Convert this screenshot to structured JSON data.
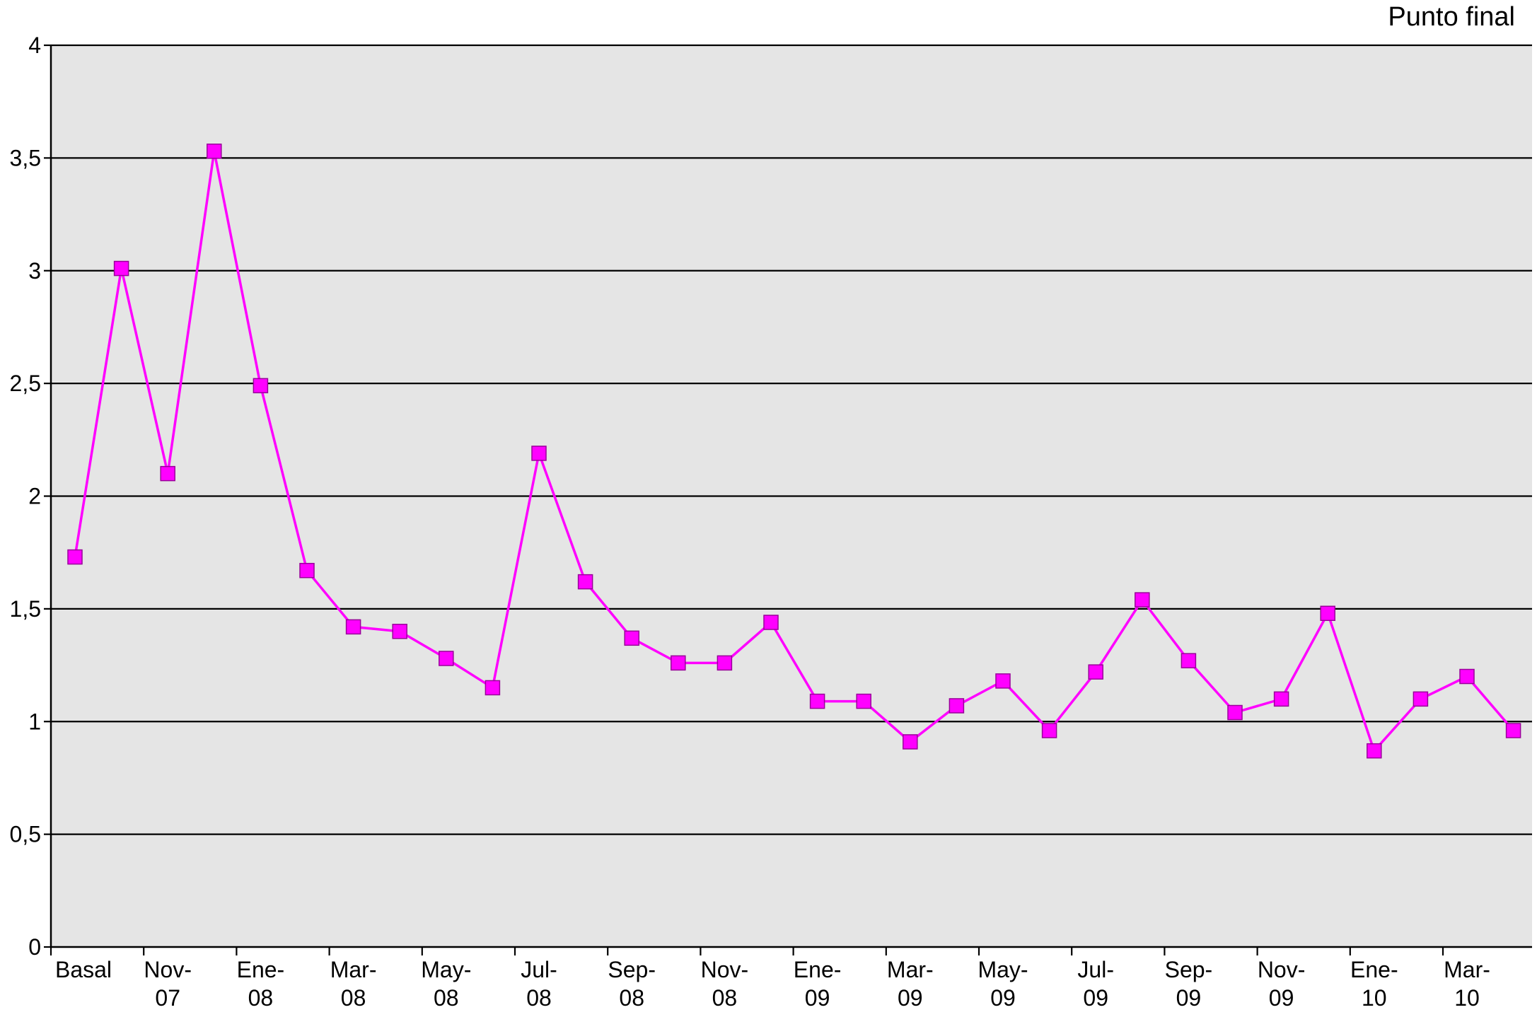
{
  "chart_data": {
    "type": "line",
    "title": "",
    "xlabel": "",
    "ylabel": "",
    "ylim": [
      0,
      4
    ],
    "yticks": [
      0,
      0.5,
      1,
      1.5,
      2,
      2.5,
      3,
      3.5,
      4
    ],
    "ytick_labels": [
      "0",
      "0,5",
      "1",
      "1,5",
      "2",
      "2,5",
      "3",
      "3,5",
      "4"
    ],
    "grid": "horizontal",
    "legend": "none",
    "annotation": "Punto final",
    "x_labels": [
      {
        "line1": "Basal",
        "line2": ""
      },
      {
        "line1": "Nov-",
        "line2": "07"
      },
      {
        "line1": "Ene-",
        "line2": "08"
      },
      {
        "line1": "Mar-",
        "line2": "08"
      },
      {
        "line1": "May-",
        "line2": "08"
      },
      {
        "line1": "Jul-",
        "line2": "08"
      },
      {
        "line1": "Sep-",
        "line2": "08"
      },
      {
        "line1": "Nov-",
        "line2": "08"
      },
      {
        "line1": "Ene-",
        "line2": "09"
      },
      {
        "line1": "Mar-",
        "line2": "09"
      },
      {
        "line1": "May-",
        "line2": "09"
      },
      {
        "line1": "Jul-",
        "line2": "09"
      },
      {
        "line1": "Sep-",
        "line2": "09"
      },
      {
        "line1": "Nov-",
        "line2": "09"
      },
      {
        "line1": "Ene-",
        "line2": "10"
      },
      {
        "line1": "Mar-",
        "line2": "10"
      }
    ],
    "series": [
      {
        "color": "#ff00ff",
        "marker": "square",
        "values": [
          1.73,
          3.01,
          2.1,
          3.53,
          2.49,
          1.67,
          1.42,
          1.4,
          1.28,
          1.15,
          2.19,
          1.62,
          1.37,
          1.26,
          1.26,
          1.44,
          1.09,
          1.09,
          0.91,
          1.07,
          1.18,
          0.96,
          1.22,
          1.54,
          1.27,
          1.04,
          1.1,
          1.48,
          0.87,
          1.1,
          1.2,
          0.96
        ]
      }
    ]
  },
  "colors": {
    "plot_bg": "#e5e5e5",
    "line": "#ff00ff",
    "grid": "#000000"
  }
}
